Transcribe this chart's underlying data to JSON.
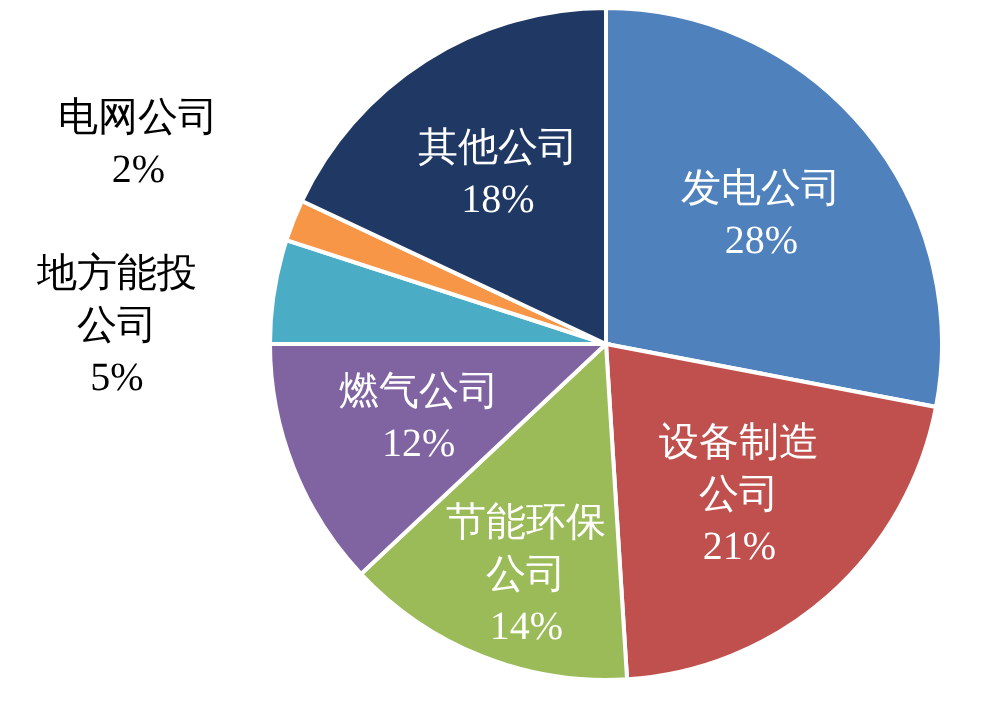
{
  "chart_data": {
    "type": "pie",
    "categories": [
      "发电公司",
      "设备制造公司",
      "节能环保公司",
      "燃气公司",
      "地方能投公司",
      "电网公司",
      "其他公司"
    ],
    "values": [
      28,
      21,
      14,
      12,
      5,
      2,
      18
    ],
    "value_labels": [
      "28%",
      "21%",
      "14%",
      "12%",
      "5%",
      "2%",
      "18%"
    ],
    "colors": [
      "#4f81bd",
      "#c0504d",
      "#9bbb59",
      "#8064a2",
      "#4bacc6",
      "#f79646",
      "#1f3864"
    ]
  }
}
